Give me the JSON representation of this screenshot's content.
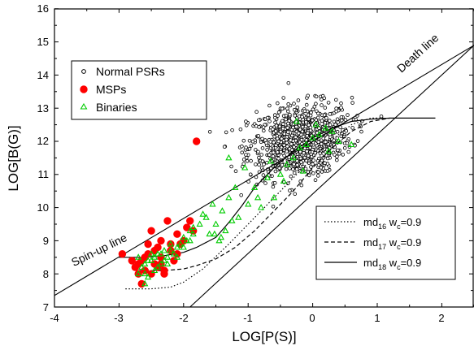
{
  "chart_data": {
    "type": "scatter",
    "title": "",
    "xlabel": "LOG[P(S)]",
    "ylabel": "LOG[B(G)]",
    "xlim": [
      -4,
      2.5
    ],
    "ylim": [
      7,
      16
    ],
    "x_ticks": [
      "-4",
      "-3",
      "-2",
      "-1",
      "0",
      "1",
      "2"
    ],
    "y_ticks": [
      "7",
      "8",
      "9",
      "10",
      "11",
      "12",
      "13",
      "14",
      "15",
      "16"
    ],
    "grid": false,
    "annotations": [
      {
        "id": "spinup",
        "text": "Spin-up line"
      },
      {
        "id": "death",
        "text": "Death line"
      }
    ],
    "legend_markers": {
      "position": "upper-left",
      "entries": [
        {
          "label": "Normal PSRs",
          "marker": "open-circle",
          "color": "#000000"
        },
        {
          "label": "MSPs",
          "marker": "filled-circle",
          "color": "#ff0000"
        },
        {
          "label": "Binaries",
          "marker": "open-triangle",
          "color": "#00cc00"
        }
      ]
    },
    "legend_lines": {
      "position": "lower-right",
      "entries": [
        {
          "base": "md",
          "sub": "16",
          "mid": " w",
          "sub2": "c",
          "tail": "=0.9",
          "style": "dotted"
        },
        {
          "base": "md",
          "sub": "17",
          "mid": " w",
          "sub2": "c",
          "tail": "=0.9",
          "style": "dashed"
        },
        {
          "base": "md",
          "sub": "18",
          "mid": " w",
          "sub2": "c",
          "tail": "=0.9",
          "style": "solid"
        }
      ]
    },
    "reference_lines": [
      {
        "name": "Spin-up line",
        "x": [
          -4,
          2.5
        ],
        "y": [
          7.35,
          14.9
        ]
      },
      {
        "name": "Death line",
        "x": [
          -1.9,
          2.5
        ],
        "y": [
          7.0,
          14.9
        ]
      }
    ],
    "series": [
      {
        "style": "dotted",
        "x": [
          -2.9,
          -2.5,
          -2.2,
          -2.0,
          -1.7,
          -1.3,
          -0.8,
          -0.3,
          0.2,
          0.6,
          0.9,
          1.1
        ],
        "y": [
          7.55,
          7.55,
          7.6,
          7.75,
          8.15,
          8.9,
          9.9,
          10.9,
          11.9,
          12.5,
          12.7,
          12.7
        ]
      },
      {
        "style": "dashed",
        "x": [
          -2.7,
          -2.3,
          -2.0,
          -1.8,
          -1.5,
          -1.2,
          -0.9,
          -0.6,
          -0.3,
          0.0,
          0.3,
          0.6,
          0.9,
          1.2
        ],
        "y": [
          8.1,
          8.1,
          8.15,
          8.25,
          8.45,
          8.8,
          9.3,
          9.9,
          10.5,
          11.2,
          11.8,
          12.3,
          12.6,
          12.7
        ]
      },
      {
        "style": "solid",
        "x": [
          -3.0,
          -2.6,
          -2.3,
          -2.0,
          -1.8,
          -1.5,
          -1.3,
          -1.1,
          -0.9,
          -0.6,
          -0.3,
          0.0,
          0.3,
          0.6,
          0.9,
          1.2,
          1.6,
          1.9
        ],
        "y": [
          8.5,
          8.5,
          8.55,
          8.65,
          8.8,
          9.1,
          9.55,
          10.05,
          10.6,
          11.2,
          11.7,
          12.1,
          12.4,
          12.6,
          12.67,
          12.7,
          12.7,
          12.7
        ]
      }
    ],
    "scatter_params": {
      "normal_center": [
        -0.2,
        12.0
      ],
      "normal_spread": [
        0.4,
        0.55
      ],
      "normal_count": 900,
      "normal_xrange": [
        -1.9,
        1.3
      ],
      "normal_yrange": [
        9.7,
        15.3
      ]
    },
    "msp_points": [
      [
        -2.95,
        8.6
      ],
      [
        -2.8,
        8.4
      ],
      [
        -2.75,
        8.2
      ],
      [
        -2.7,
        8.0
      ],
      [
        -2.65,
        7.7
      ],
      [
        -2.6,
        8.5
      ],
      [
        -2.55,
        8.9
      ],
      [
        -2.5,
        9.3
      ],
      [
        -2.45,
        8.3
      ],
      [
        -2.4,
        8.8
      ],
      [
        -2.35,
        9.0
      ],
      [
        -2.3,
        8.1
      ],
      [
        -2.25,
        9.6
      ],
      [
        -2.2,
        8.7
      ],
      [
        -2.15,
        8.4
      ],
      [
        -2.1,
        9.2
      ],
      [
        -2.05,
        8.9
      ],
      [
        -2.0,
        9.0
      ],
      [
        -1.95,
        9.4
      ],
      [
        -1.9,
        9.6
      ],
      [
        -1.85,
        9.3
      ],
      [
        -1.8,
        12.0
      ],
      [
        -2.4,
        8.2
      ],
      [
        -2.55,
        8.6
      ],
      [
        -2.35,
        8.5
      ],
      [
        -2.7,
        8.3
      ],
      [
        -2.3,
        8.0
      ],
      [
        -2.6,
        8.1
      ],
      [
        -2.45,
        8.7
      ],
      [
        -2.2,
        8.9
      ],
      [
        -2.1,
        8.6
      ],
      [
        -2.65,
        8.4
      ],
      [
        -2.5,
        8.0
      ],
      [
        -2.35,
        8.3
      ]
    ],
    "binary_points": [
      [
        -2.7,
        8.5
      ],
      [
        -2.65,
        8.2
      ],
      [
        -2.6,
        8.0
      ],
      [
        -2.55,
        7.9
      ],
      [
        -2.5,
        8.4
      ],
      [
        -2.45,
        8.1
      ],
      [
        -2.4,
        8.6
      ],
      [
        -2.35,
        8.3
      ],
      [
        -2.3,
        8.7
      ],
      [
        -2.25,
        8.5
      ],
      [
        -2.2,
        8.9
      ],
      [
        -2.15,
        8.6
      ],
      [
        -2.1,
        8.8
      ],
      [
        -2.05,
        8.9
      ],
      [
        -2.0,
        9.1
      ],
      [
        -1.95,
        9.0
      ],
      [
        -1.9,
        9.3
      ],
      [
        -1.85,
        9.2
      ],
      [
        -2.6,
        8.3
      ],
      [
        -2.5,
        8.6
      ],
      [
        -2.4,
        8.2
      ],
      [
        -2.3,
        8.4
      ],
      [
        -2.2,
        8.7
      ],
      [
        -2.1,
        8.5
      ],
      [
        -2.0,
        8.8
      ],
      [
        -1.9,
        9.0
      ],
      [
        -2.55,
        8.4
      ],
      [
        -2.45,
        8.5
      ],
      [
        -2.35,
        8.6
      ],
      [
        -2.25,
        8.3
      ],
      [
        -2.7,
        8.0
      ],
      [
        -2.6,
        7.7
      ],
      [
        -1.7,
        9.8
      ],
      [
        -1.6,
        9.2
      ],
      [
        -1.55,
        10.1
      ],
      [
        -1.5,
        9.5
      ],
      [
        -1.45,
        9.0
      ],
      [
        -1.4,
        9.9
      ],
      [
        -1.35,
        9.3
      ],
      [
        -1.3,
        10.3
      ],
      [
        -1.25,
        9.6
      ],
      [
        -1.2,
        10.6
      ],
      [
        -1.15,
        9.7
      ],
      [
        -1.0,
        10.1
      ],
      [
        -0.9,
        10.6
      ],
      [
        -0.8,
        10.0
      ],
      [
        -0.7,
        10.9
      ],
      [
        -0.6,
        10.3
      ],
      [
        -0.5,
        11.0
      ],
      [
        -0.4,
        11.3
      ],
      [
        -0.3,
        11.5
      ],
      [
        -0.2,
        11.8
      ],
      [
        -0.1,
        11.9
      ],
      [
        0.0,
        12.1
      ],
      [
        0.1,
        12.2
      ],
      [
        0.2,
        12.4
      ],
      [
        0.3,
        12.3
      ],
      [
        0.4,
        12.0
      ],
      [
        0.6,
        11.9
      ],
      [
        -1.3,
        11.5
      ],
      [
        -1.05,
        11.2
      ],
      [
        -0.65,
        11.4
      ],
      [
        -0.25,
        12.6
      ],
      [
        0.05,
        12.5
      ],
      [
        -1.75,
        9.5
      ],
      [
        -1.65,
        9.7
      ],
      [
        -1.85,
        9.4
      ],
      [
        -1.52,
        9.2
      ],
      [
        -1.42,
        9.1
      ],
      [
        -0.85,
        10.3
      ],
      [
        -0.45,
        10.8
      ],
      [
        -0.15,
        11.1
      ],
      [
        0.25,
        11.7
      ]
    ]
  }
}
